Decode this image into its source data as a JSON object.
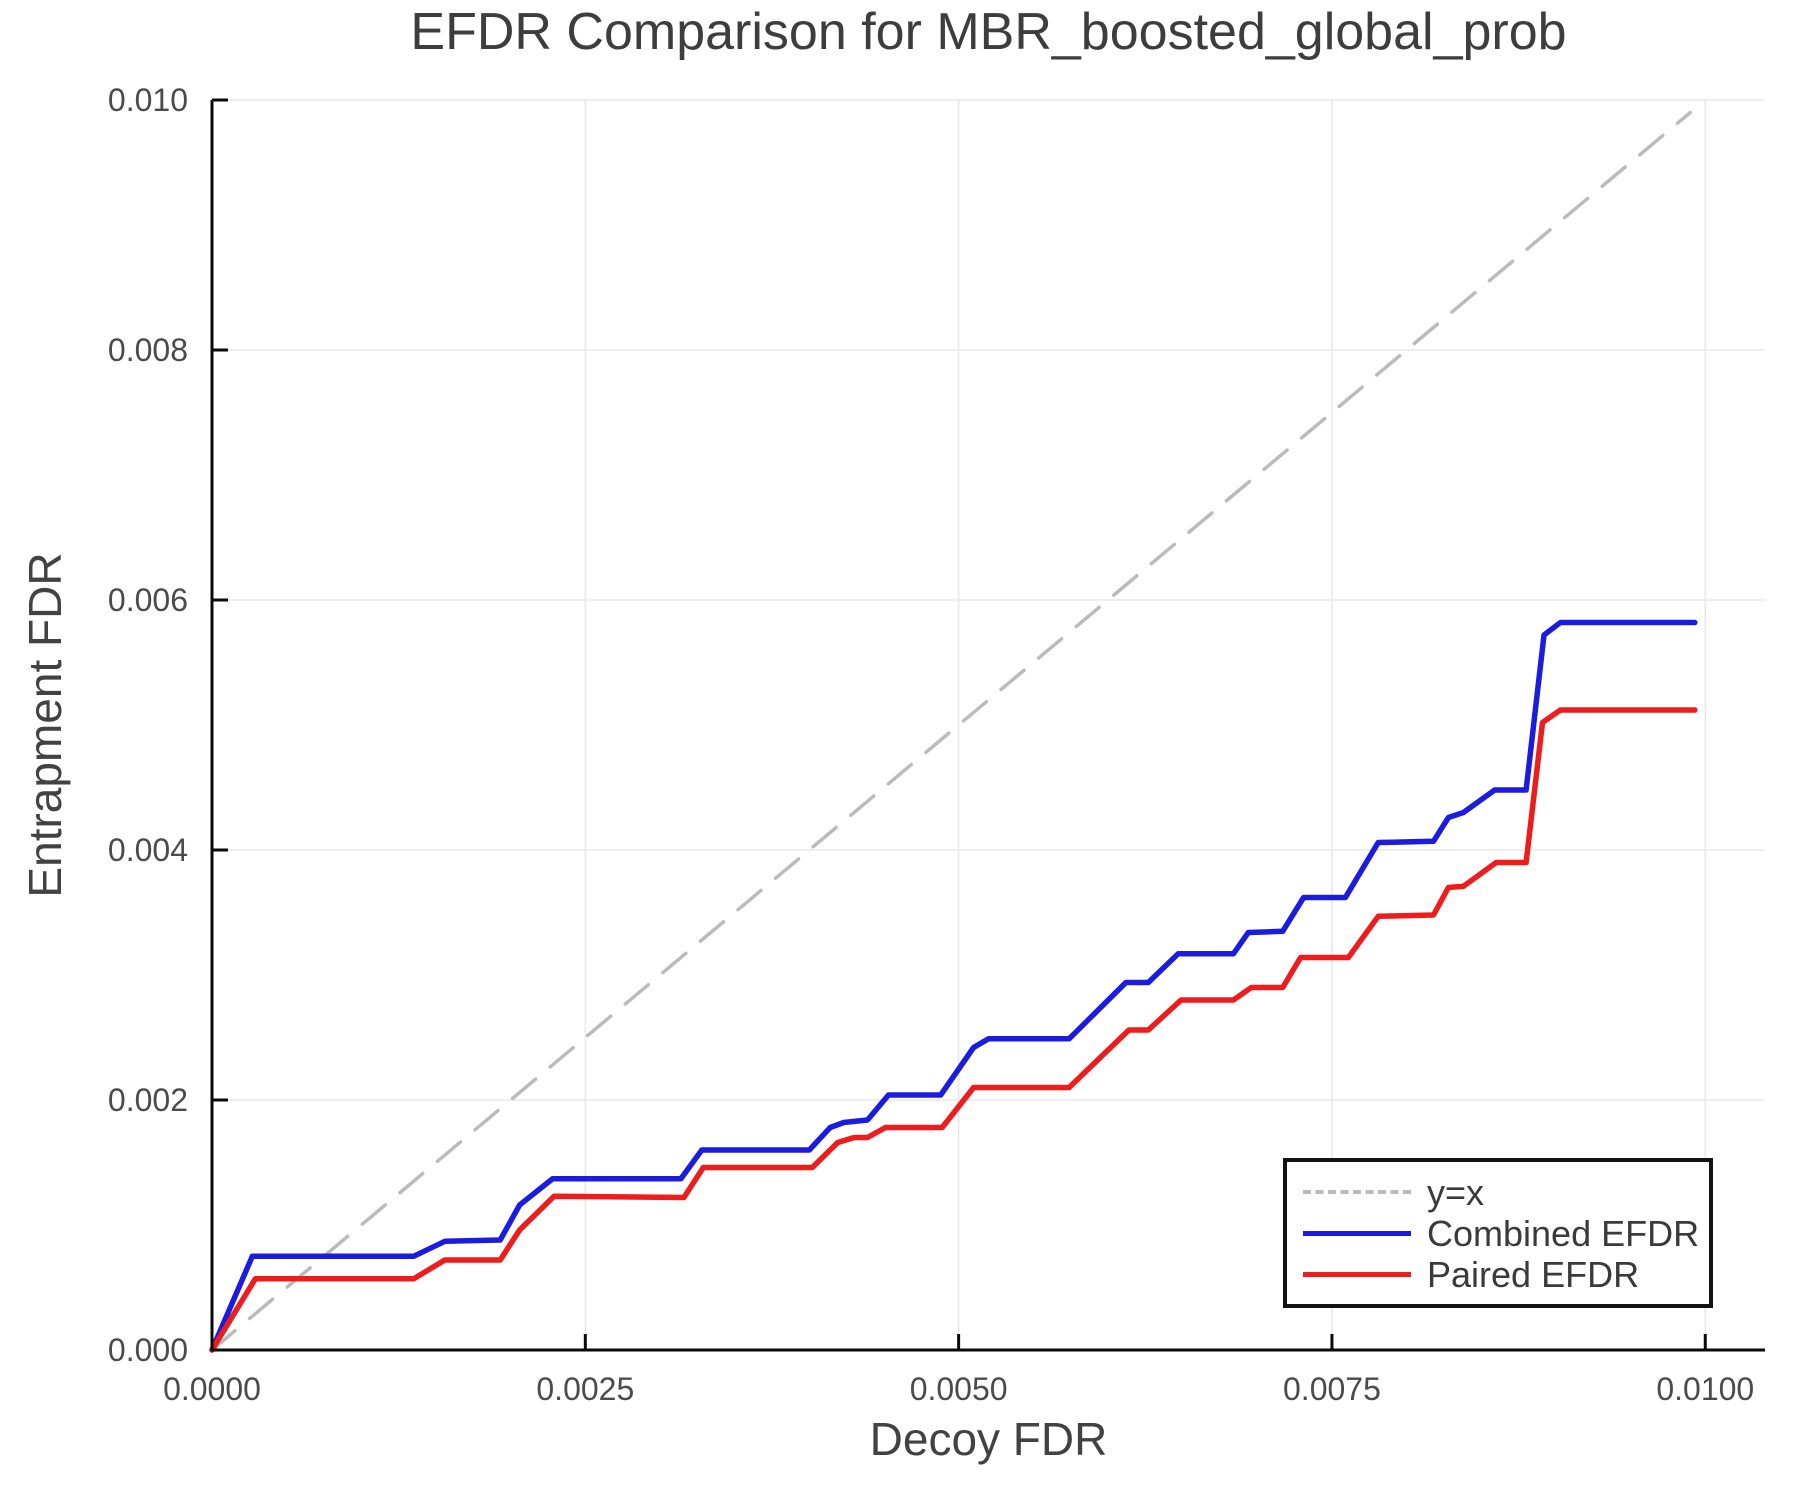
{
  "chart_data": {
    "type": "line",
    "title": "EFDR Comparison for MBR_boosted_global_prob",
    "xlabel": "Decoy FDR",
    "ylabel": "Entrapment FDR",
    "xlim": [
      0,
      0.0104
    ],
    "ylim": [
      0,
      0.01
    ],
    "grid": true,
    "xticks": {
      "values": [
        0.0,
        0.0025,
        0.005,
        0.0075,
        0.01
      ],
      "labels": [
        "0.0000",
        "0.0025",
        "0.0050",
        "0.0075",
        "0.0100"
      ]
    },
    "yticks": {
      "values": [
        0.0,
        0.002,
        0.004,
        0.006,
        0.008,
        0.01
      ],
      "labels": [
        "0.000",
        "0.002",
        "0.004",
        "0.006",
        "0.008",
        "0.010"
      ]
    },
    "legend": {
      "position": "lower right"
    },
    "series": [
      {
        "name": "y=x",
        "style": "dashed",
        "color": "#bbbbbb",
        "width": 3.5,
        "points": [
          [
            0,
            0
          ],
          [
            0.0099,
            0.0099
          ]
        ]
      },
      {
        "name": "Combined EFDR",
        "style": "solid",
        "color": "#1c1ce0",
        "width": 5.5,
        "points": [
          [
            0.0,
            0.0
          ],
          [
            0.00027,
            0.00075
          ],
          [
            0.00135,
            0.00075
          ],
          [
            0.00156,
            0.00087
          ],
          [
            0.00193,
            0.00088
          ],
          [
            0.00206,
            0.00116
          ],
          [
            0.00228,
            0.00137
          ],
          [
            0.00314,
            0.00137
          ],
          [
            0.00328,
            0.0016
          ],
          [
            0.004,
            0.0016
          ],
          [
            0.00414,
            0.00178
          ],
          [
            0.00423,
            0.00182
          ],
          [
            0.00439,
            0.00184
          ],
          [
            0.00453,
            0.00204
          ],
          [
            0.00488,
            0.00204
          ],
          [
            0.0051,
            0.00242
          ],
          [
            0.0052,
            0.00249
          ],
          [
            0.00574,
            0.00249
          ],
          [
            0.00612,
            0.00294
          ],
          [
            0.00627,
            0.00294
          ],
          [
            0.00647,
            0.00317
          ],
          [
            0.00684,
            0.00317
          ],
          [
            0.00694,
            0.00334
          ],
          [
            0.00717,
            0.00335
          ],
          [
            0.00731,
            0.00362
          ],
          [
            0.00759,
            0.00362
          ],
          [
            0.00781,
            0.00406
          ],
          [
            0.00818,
            0.00407
          ],
          [
            0.00828,
            0.00426
          ],
          [
            0.00838,
            0.0043
          ],
          [
            0.00859,
            0.00448
          ],
          [
            0.0088,
            0.00448
          ],
          [
            0.00892,
            0.00572
          ],
          [
            0.00903,
            0.00582
          ],
          [
            0.00993,
            0.00582
          ]
        ]
      },
      {
        "name": "Paired EFDR",
        "style": "solid",
        "color": "#ee1c1c",
        "width": 5.5,
        "points": [
          [
            0.0,
            0.0
          ],
          [
            0.00029,
            0.00057
          ],
          [
            0.00135,
            0.00057
          ],
          [
            0.00156,
            0.00072
          ],
          [
            0.00193,
            0.00072
          ],
          [
            0.00206,
            0.00096
          ],
          [
            0.00229,
            0.00123
          ],
          [
            0.00316,
            0.00122
          ],
          [
            0.00329,
            0.00146
          ],
          [
            0.00402,
            0.00146
          ],
          [
            0.00419,
            0.00166
          ],
          [
            0.0043,
            0.0017
          ],
          [
            0.00439,
            0.0017
          ],
          [
            0.00451,
            0.00178
          ],
          [
            0.00489,
            0.00178
          ],
          [
            0.0051,
            0.0021
          ],
          [
            0.00574,
            0.0021
          ],
          [
            0.00614,
            0.00256
          ],
          [
            0.00627,
            0.00256
          ],
          [
            0.00649,
            0.0028
          ],
          [
            0.00684,
            0.0028
          ],
          [
            0.00696,
            0.0029
          ],
          [
            0.00717,
            0.0029
          ],
          [
            0.00729,
            0.00314
          ],
          [
            0.00761,
            0.00314
          ],
          [
            0.00781,
            0.00347
          ],
          [
            0.00818,
            0.00348
          ],
          [
            0.00828,
            0.0037
          ],
          [
            0.00838,
            0.00371
          ],
          [
            0.0086,
            0.0039
          ],
          [
            0.0088,
            0.0039
          ],
          [
            0.00891,
            0.00502
          ],
          [
            0.00903,
            0.00512
          ],
          [
            0.00993,
            0.00512
          ]
        ]
      }
    ],
    "colors": {
      "grid": "#e8e8e8",
      "axis": "#0a0a0a",
      "background": "#ffffff"
    }
  }
}
